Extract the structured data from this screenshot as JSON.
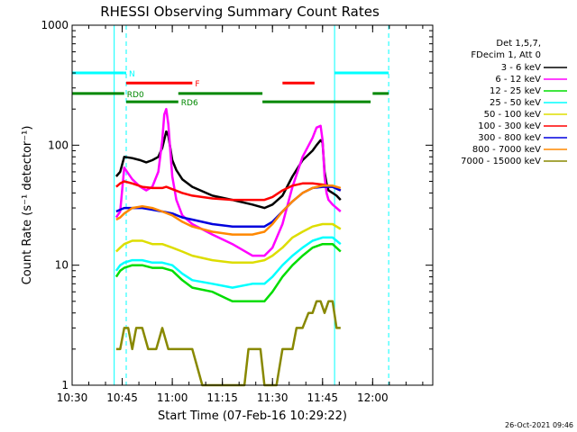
{
  "chart_data": {
    "type": "line",
    "title": "RHESSI Observing Summary Count Rates",
    "xlabel": "Start Time (07-Feb-16 10:29:22)",
    "ylabel": "Count Rate (s⁻¹ detector⁻¹)",
    "yscale": "log",
    "ylim": [
      1,
      1000
    ],
    "xlim": [
      10.5,
      12.3
    ],
    "x_ticks": [
      10.5,
      10.75,
      11.0,
      11.25,
      11.5,
      11.75,
      12.0
    ],
    "x_tick_labels": [
      "10:30",
      "10:45",
      "11:00",
      "11:15",
      "11:30",
      "11:45",
      "12:00"
    ],
    "y_ticks": [
      1,
      10,
      100,
      1000
    ],
    "y_tick_labels": [
      "1",
      "10",
      "100",
      "1000"
    ],
    "timestamp": "26-Oct-2021 09:46",
    "legend": {
      "placement": "right",
      "header": [
        "Det 1,5,7,",
        "FDecim 1, Att 0"
      ]
    },
    "series": [
      {
        "name": "3 - 6 keV",
        "color": "#000000",
        "x": [
          10.72,
          10.74,
          10.76,
          10.8,
          10.84,
          10.87,
          10.9,
          10.93,
          10.95,
          10.97,
          10.98,
          10.99,
          11.0,
          11.02,
          11.05,
          11.1,
          11.2,
          11.3,
          11.4,
          11.46,
          11.5,
          11.55,
          11.6,
          11.65,
          11.7,
          11.72,
          11.74,
          11.75,
          11.76,
          11.77,
          11.78,
          11.8,
          11.82,
          11.84
        ],
        "y": [
          55,
          60,
          80,
          78,
          75,
          72,
          75,
          80,
          95,
          130,
          120,
          95,
          75,
          62,
          52,
          45,
          38,
          35,
          32,
          30,
          32,
          38,
          55,
          75,
          90,
          100,
          110,
          105,
          60,
          48,
          42,
          40,
          38,
          35
        ]
      },
      {
        "name": "6 - 12 keV",
        "color": "#ff00ff",
        "x": [
          10.72,
          10.74,
          10.76,
          10.8,
          10.84,
          10.87,
          10.9,
          10.93,
          10.95,
          10.96,
          10.97,
          10.98,
          10.99,
          11.0,
          11.02,
          11.05,
          11.1,
          11.2,
          11.3,
          11.4,
          11.46,
          11.5,
          11.55,
          11.6,
          11.65,
          11.7,
          11.72,
          11.74,
          11.75,
          11.76,
          11.77,
          11.78,
          11.8,
          11.82,
          11.84
        ],
        "y": [
          25,
          28,
          65,
          52,
          45,
          42,
          45,
          60,
          110,
          180,
          200,
          150,
          90,
          55,
          35,
          26,
          22,
          18,
          15,
          12,
          12,
          14,
          22,
          45,
          80,
          115,
          140,
          145,
          110,
          55,
          40,
          35,
          32,
          30,
          28
        ]
      },
      {
        "name": "12 - 25 keV",
        "color": "#00dd00",
        "x": [
          10.72,
          10.74,
          10.76,
          10.8,
          10.85,
          10.9,
          10.95,
          11.0,
          11.05,
          11.1,
          11.2,
          11.3,
          11.4,
          11.46,
          11.5,
          11.55,
          11.6,
          11.65,
          11.7,
          11.75,
          11.8,
          11.84
        ],
        "y": [
          8,
          9,
          9.5,
          10,
          10,
          9.5,
          9.5,
          9,
          7.5,
          6.5,
          6,
          5,
          5,
          5,
          6,
          8,
          10,
          12,
          14,
          15,
          15,
          13
        ]
      },
      {
        "name": "25 - 50 keV",
        "color": "#00ffff",
        "x": [
          10.72,
          10.74,
          10.76,
          10.8,
          10.85,
          10.9,
          10.95,
          11.0,
          11.05,
          11.1,
          11.2,
          11.3,
          11.4,
          11.46,
          11.5,
          11.55,
          11.6,
          11.65,
          11.7,
          11.75,
          11.8,
          11.84
        ],
        "y": [
          9,
          10,
          10.5,
          11,
          11,
          10.5,
          10.5,
          10,
          8.5,
          7.5,
          7,
          6.5,
          7,
          7,
          8,
          10,
          12,
          14,
          16,
          17,
          17,
          15
        ]
      },
      {
        "name": "50 - 100 keV",
        "color": "#dddd00",
        "x": [
          10.72,
          10.74,
          10.76,
          10.8,
          10.85,
          10.9,
          10.95,
          11.0,
          11.05,
          11.1,
          11.2,
          11.3,
          11.4,
          11.46,
          11.5,
          11.55,
          11.6,
          11.65,
          11.7,
          11.75,
          11.8,
          11.84
        ],
        "y": [
          13,
          14,
          15,
          16,
          16,
          15,
          15,
          14,
          13,
          12,
          11,
          10.5,
          10.5,
          11,
          12,
          14,
          17,
          19,
          21,
          22,
          22,
          20
        ]
      },
      {
        "name": "100 - 300 keV",
        "color": "#ff0000",
        "x": [
          10.72,
          10.74,
          10.76,
          10.8,
          10.85,
          10.9,
          10.95,
          10.97,
          11.0,
          11.05,
          11.1,
          11.2,
          11.3,
          11.4,
          11.46,
          11.5,
          11.55,
          11.6,
          11.65,
          11.7,
          11.75,
          11.8,
          11.84
        ],
        "y": [
          45,
          48,
          50,
          48,
          45,
          44,
          44,
          45,
          43,
          40,
          38,
          36,
          35,
          35,
          35,
          37,
          42,
          46,
          48,
          48,
          47,
          45,
          42
        ]
      },
      {
        "name": "300 - 800 keV",
        "color": "#0000dd",
        "x": [
          10.72,
          10.74,
          10.76,
          10.8,
          10.85,
          10.9,
          10.95,
          11.0,
          11.05,
          11.1,
          11.2,
          11.3,
          11.4,
          11.46,
          11.5,
          11.55,
          11.6,
          11.65,
          11.7,
          11.75,
          11.8,
          11.84
        ],
        "y": [
          28,
          29,
          30,
          30,
          30,
          29,
          28,
          27,
          25,
          24,
          22,
          21,
          21,
          21,
          23,
          28,
          34,
          40,
          44,
          45,
          45,
          42
        ]
      },
      {
        "name": "800 - 7000 keV",
        "color": "#ff8800",
        "x": [
          10.72,
          10.74,
          10.76,
          10.8,
          10.85,
          10.9,
          10.95,
          11.0,
          11.05,
          11.1,
          11.2,
          11.3,
          11.4,
          11.46,
          11.5,
          11.55,
          11.6,
          11.65,
          11.7,
          11.75,
          11.8,
          11.84
        ],
        "y": [
          24,
          25,
          27,
          30,
          31,
          30,
          28,
          26,
          23,
          21,
          19,
          18,
          18,
          19,
          22,
          28,
          34,
          40,
          44,
          46,
          46,
          44
        ]
      },
      {
        "name": "7000 - 15000 keV",
        "color": "#888800",
        "x": [
          10.72,
          10.74,
          10.76,
          10.78,
          10.8,
          10.82,
          10.85,
          10.88,
          10.9,
          10.92,
          10.95,
          10.98,
          11.0,
          11.02,
          11.05,
          11.08,
          11.1,
          11.15,
          11.2,
          11.25,
          11.3,
          11.33,
          11.36,
          11.38,
          11.4,
          11.42,
          11.44,
          11.46,
          11.48,
          11.5,
          11.52,
          11.55,
          11.58,
          11.6,
          11.62,
          11.65,
          11.68,
          11.7,
          11.72,
          11.74,
          11.76,
          11.78,
          11.8,
          11.82,
          11.84
        ],
        "y": [
          2,
          2,
          3,
          3,
          2,
          3,
          3,
          2,
          2,
          2,
          3,
          2,
          2,
          2,
          2,
          2,
          2,
          1,
          1,
          1,
          1,
          1,
          1,
          2,
          2,
          2,
          2,
          1,
          1,
          1,
          1,
          2,
          2,
          2,
          3,
          3,
          4,
          4,
          5,
          5,
          4,
          5,
          5,
          3,
          3
        ]
      }
    ],
    "observing_bars": [
      {
        "label": "",
        "color": "#00ffff",
        "level": 400,
        "x_start": 10.5,
        "x_end": 10.76
      },
      {
        "label": "N",
        "color": "#00ffff",
        "level": 400,
        "x_start": 10.76,
        "x_end": 10.77
      },
      {
        "label": "",
        "color": "#00ffff",
        "level": 400,
        "x_start": 11.81,
        "x_end": 12.08
      },
      {
        "label": "F",
        "color": "#ff0000",
        "level": 330,
        "x_start": 10.77,
        "x_end": 11.1
      },
      {
        "label": "",
        "color": "#ff0000",
        "level": 330,
        "x_start": 11.55,
        "x_end": 11.71
      },
      {
        "label": "RD0",
        "color": "#008800",
        "level": 270,
        "x_start": 10.5,
        "x_end": 10.76
      },
      {
        "label": "",
        "color": "#008800",
        "level": 270,
        "x_start": 11.03,
        "x_end": 11.45
      },
      {
        "label": "",
        "color": "#008800",
        "level": 270,
        "x_start": 12.0,
        "x_end": 12.08
      },
      {
        "label": "RD6",
        "color": "#008800",
        "level": 230,
        "x_start": 10.77,
        "x_end": 11.03
      },
      {
        "label": "",
        "color": "#008800",
        "level": 230,
        "x_start": 11.45,
        "x_end": 11.99
      }
    ],
    "vertical_markers": [
      {
        "x": 10.5,
        "color": "#00ffff",
        "style": "solid"
      },
      {
        "x": 10.71,
        "color": "#00ffff",
        "style": "solid"
      },
      {
        "x": 10.77,
        "color": "#00ffff",
        "style": "dashed"
      },
      {
        "x": 11.81,
        "color": "#00ffff",
        "style": "solid"
      },
      {
        "x": 12.08,
        "color": "#00ffff",
        "style": "dashed"
      }
    ]
  }
}
